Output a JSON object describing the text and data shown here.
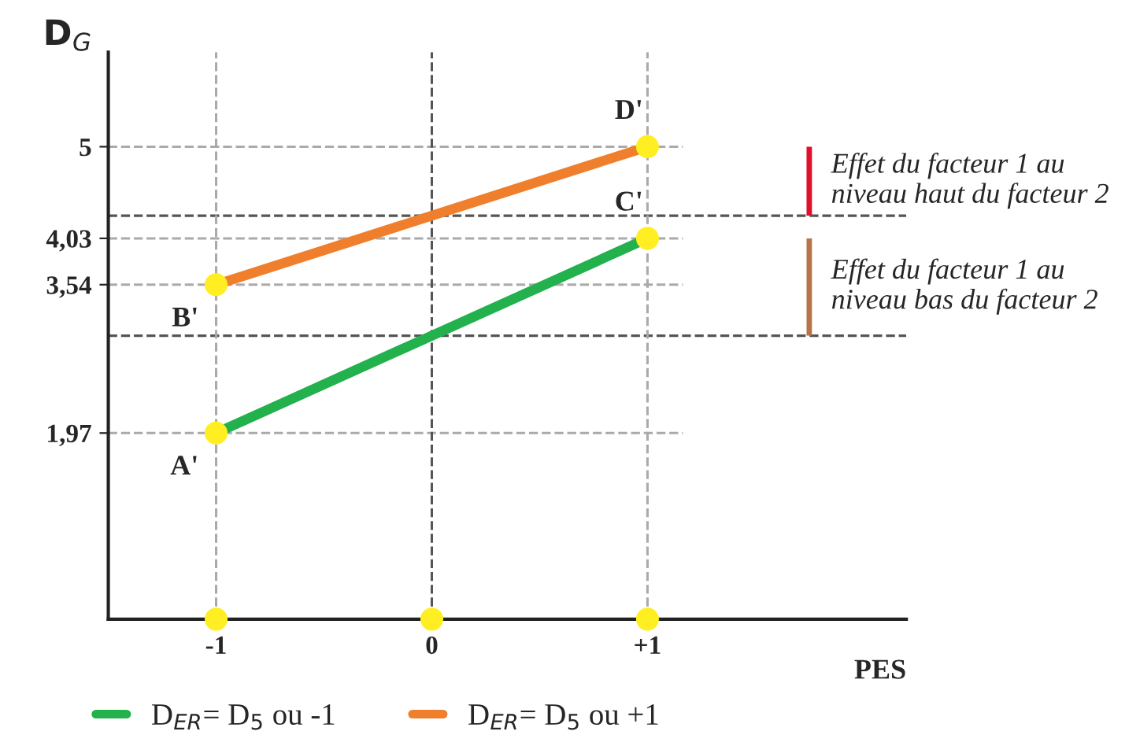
{
  "chart_data": {
    "type": "line",
    "ylabel": "D$_{G}$",
    "xlabel": "PES",
    "x": [
      -1,
      1
    ],
    "series": [
      {
        "name": "D$_{ER}$= D$_{5}$ ou -1",
        "color": "#22b14c",
        "values": [
          1.97,
          4.03
        ]
      },
      {
        "name": "D$_{ER}$= D$_{5}$ ou +1",
        "color": "#f07f2d",
        "values": [
          3.54,
          5
        ]
      },
      {
        "type": "bar",
        "x": [
          1.75,
          1.75
        ],
        "base": [
          4.27,
          3.0
        ],
        "values": [
          0.73,
          1.03
        ],
        "colors": [
          "#e0102a",
          "#b5754a"
        ]
      },
      {
        "type": "scatter",
        "color": "#ffee22",
        "x": [
          -1,
          -1,
          1,
          1,
          -1,
          0,
          1
        ],
        "values": [
          1.97,
          3.54,
          4.03,
          5,
          0,
          0,
          0
        ]
      }
    ],
    "xlim": [
      -1.5,
      2.2
    ],
    "ylim": [
      0,
      6
    ],
    "xticks": [
      {
        "value": -1,
        "label": "-1"
      },
      0,
      {
        "value": 1,
        "label": "+1"
      }
    ],
    "yticks": [
      {
        "value": 1.97,
        "label": "1,97"
      },
      {
        "value": 3.54,
        "label": "3,54"
      },
      {
        "value": 4.03,
        "label": "4,03"
      },
      5
    ],
    "ref_lines": [
      {
        "axis": "y",
        "value": 5,
        "color": "#aaaaaa",
        "line_style": "dashed"
      },
      {
        "axis": "y",
        "value": 4.03,
        "color": "#aaaaaa",
        "line_style": "dashed"
      },
      {
        "axis": "y",
        "value": 3.54,
        "color": "#aaaaaa",
        "line_style": "dashed"
      },
      {
        "axis": "y",
        "value": 1.97,
        "color": "#aaaaaa",
        "line_style": "dashed"
      },
      {
        "axis": "y",
        "value": 4.27,
        "color": "#555555",
        "line_style": "dashed"
      },
      {
        "axis": "y",
        "value": 3.0,
        "color": "#555555",
        "line_style": "dashed"
      },
      {
        "axis": "x",
        "value": 0,
        "color": "#555555",
        "line_style": "dashed"
      },
      {
        "axis": "x",
        "value": -1,
        "color": "#aaaaaa",
        "line_style": "dashed"
      },
      {
        "axis": "x",
        "value": 1,
        "color": "#aaaaaa",
        "line_style": "dashed"
      }
    ],
    "annotations": [
      {
        "text": "Effet du facteur 1 au niveau haut du facteur 2",
        "x": 1.75,
        "y": 4.64
      },
      {
        "text": "Effet du facteur 1 au niveau bas du facteur 2",
        "x": 1.75,
        "y": 3.52
      },
      {
        "text": "A'",
        "x": -1,
        "y": 1.97
      },
      {
        "text": "B'",
        "x": -1,
        "y": 3.54
      },
      {
        "text": "C'",
        "x": 1,
        "y": 4.03
      },
      {
        "text": "D'",
        "x": 1,
        "y": 5
      }
    ],
    "marker": "circle",
    "line_style": "solid",
    "grid": false,
    "legend": "bottom"
  }
}
